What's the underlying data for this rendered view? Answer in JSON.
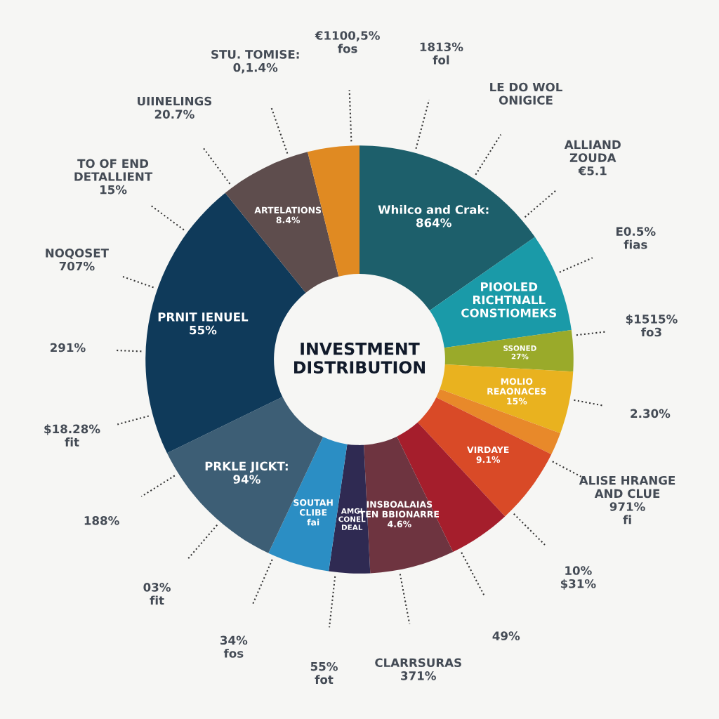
{
  "chart_data": {
    "type": "donut",
    "title": "INVESTMENT\nDISTRIBUTION",
    "categories": [
      "Whilco and Crak:\n864%",
      "PIOOLED\nRICHTNALL\nCONSTIOMEKS",
      "SSONED\n27%",
      "MOLIO\nREAONACES\n15%",
      null,
      "VIRDAYE\n9.1%",
      null,
      "INSBOALAIAS\nTEN BBIONARRE\n4.6%",
      "AMGI\nCONEL\nDEAL",
      "SOUTAH\nCLIBE\nfai",
      "PRKLE JICKT:\n94%",
      "PRNIT IENUEL\n55%",
      "ARTELATIONS\n8.4%",
      null
    ],
    "values": [
      15.3,
      7.5,
      3.1,
      4.7,
      1.7,
      5.8,
      4.7,
      6.4,
      3.1,
      4.7,
      10.8,
      21.4,
      6.9,
      3.9
    ],
    "colors": [
      "#1d5f6b",
      "#1a9aa8",
      "#9aaa2a",
      "#e9b21f",
      "#e8892a",
      "#d94a27",
      "#a51e2c",
      "#6e3440",
      "#2f2a52",
      "#2b8ec4",
      "#3d5e75",
      "#0f3a5a",
      "#5e4d4d",
      "#e08a22"
    ],
    "annotations": [
      "1813%\nfol",
      "LE DO WOL\nONIGICE",
      "ALLIAND\nZOUDA\n€5.1",
      "E0.5%\nfias",
      "$1515%\nfo3",
      "2.30%",
      "ALISE HRANGE\nAND CLUE\n971%\nfi",
      "10%\n$31%",
      "49%",
      "CLARRSURAS\n371%",
      "55%\nfot",
      "34%\nfos",
      "03%\nfit",
      "188%",
      "$18.28%\nfit",
      "291%",
      "NOQOSET\n707%",
      "TO OF END\nDETALLIENT\n15%",
      "UIINELINGS\n20.7%",
      "STU. TOMISE:\n0,1.4%",
      "€1100,5%\nfos"
    ]
  }
}
